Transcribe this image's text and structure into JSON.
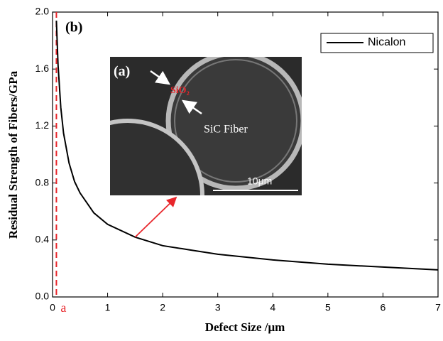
{
  "chart_data": {
    "type": "line",
    "panel_label": "(b)",
    "xlabel": "Defect Size /μm",
    "ylabel": "Residual Strength of Fibers/GPa",
    "x": [
      0.07,
      0.1,
      0.15,
      0.2,
      0.3,
      0.4,
      0.5,
      0.75,
      1,
      1.5,
      2,
      2.5,
      3,
      4,
      5,
      6,
      7
    ],
    "series": [
      {
        "name": "Nicalon",
        "color": "#000000",
        "values": [
          1.94,
          1.63,
          1.33,
          1.15,
          0.94,
          0.81,
          0.73,
          0.59,
          0.51,
          0.42,
          0.36,
          0.33,
          0.3,
          0.26,
          0.23,
          0.21,
          0.19
        ]
      }
    ],
    "xlim": [
      0,
      7
    ],
    "xticks": [
      0,
      1,
      2,
      3,
      4,
      5,
      6,
      7
    ],
    "ylim": [
      0,
      2
    ],
    "yticks": [
      {
        "value": 0,
        "label": "0.0"
      },
      0.4,
      0.8,
      1.2,
      1.6,
      {
        "value": 2,
        "label": "2.0"
      }
    ],
    "marker_x": 0.07,
    "marker_label": "a",
    "marker_color": "#e8262b",
    "legend": "upper right",
    "inset": {
      "label": "(a)",
      "layer": "SiO₂",
      "fiber": "SiC Fiber",
      "scale": "10μm"
    }
  }
}
